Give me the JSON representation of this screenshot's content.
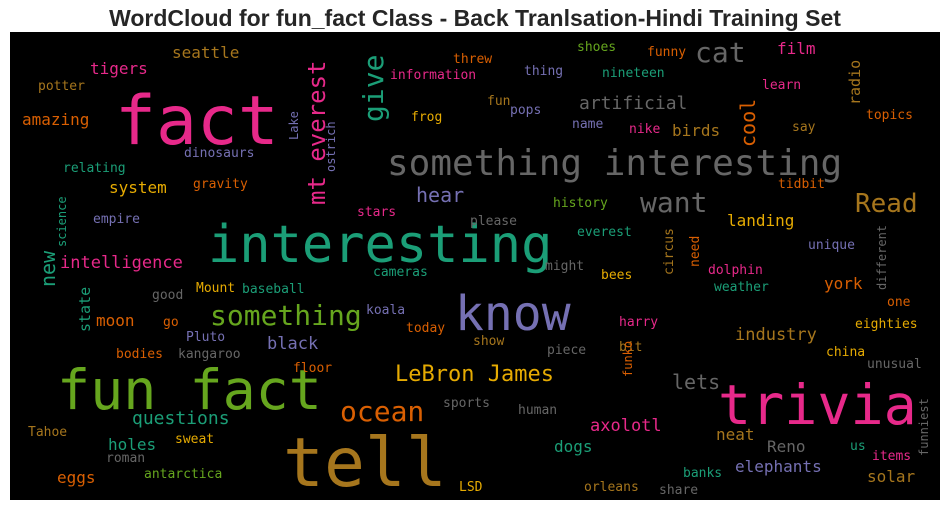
{
  "chart_data": {
    "type": "wordcloud",
    "title": "WordCloud for fun_fact Class - Back Tranlsation-Hindi Training Set",
    "background": "#000000",
    "words": [
      {
        "text": "fact",
        "size": 68,
        "color": "#e7298a"
      },
      {
        "text": "interesting",
        "size": 52,
        "color": "#1b9e77"
      },
      {
        "text": "fun fact",
        "size": 55,
        "color": "#66a61e"
      },
      {
        "text": "tell",
        "size": 68,
        "color": "#a6761d"
      },
      {
        "text": "trivia",
        "size": 55,
        "color": "#e7298a"
      },
      {
        "text": "know",
        "size": 48,
        "color": "#7570b3"
      },
      {
        "text": "something interesting",
        "size": 36,
        "color": "#666666"
      },
      {
        "text": "something",
        "size": 28,
        "color": "#66a61e"
      },
      {
        "text": "ocean",
        "size": 28,
        "color": "#d95f02"
      },
      {
        "text": "cat",
        "size": 28,
        "color": "#666666"
      },
      {
        "text": "give",
        "size": 28,
        "color": "#1b9e77"
      },
      {
        "text": "want",
        "size": 28,
        "color": "#666666"
      },
      {
        "text": "Read",
        "size": 26,
        "color": "#a6761d"
      },
      {
        "text": "mt everest",
        "size": 24,
        "color": "#e7298a"
      },
      {
        "text": "LeBron James",
        "size": 22,
        "color": "#e6ab02"
      },
      {
        "text": "cool",
        "size": 20,
        "color": "#d95f02"
      },
      {
        "text": "hear",
        "size": 20,
        "color": "#7570b3"
      },
      {
        "text": "lets",
        "size": 20,
        "color": "#666666"
      },
      {
        "text": "new",
        "size": 20,
        "color": "#1b9e77"
      },
      {
        "text": "artificial",
        "size": 18,
        "color": "#666666"
      },
      {
        "text": "questions",
        "size": 18,
        "color": "#1b9e77"
      },
      {
        "text": "intelligence",
        "size": 17,
        "color": "#e7298a"
      },
      {
        "text": "black",
        "size": 17,
        "color": "#7570b3"
      },
      {
        "text": "industry",
        "size": 17,
        "color": "#a6761d"
      },
      {
        "text": "axolotl",
        "size": 17,
        "color": "#e7298a"
      },
      {
        "text": "elephants",
        "size": 16,
        "color": "#7570b3"
      },
      {
        "text": "birds",
        "size": 16,
        "color": "#a6761d"
      },
      {
        "text": "landing",
        "size": 16,
        "color": "#e6ab02"
      },
      {
        "text": "york",
        "size": 16,
        "color": "#d95f02"
      },
      {
        "text": "neat",
        "size": 16,
        "color": "#a6761d"
      },
      {
        "text": "dogs",
        "size": 16,
        "color": "#1b9e77"
      },
      {
        "text": "Reno",
        "size": 16,
        "color": "#666666"
      },
      {
        "text": "solar",
        "size": 16,
        "color": "#a6761d"
      },
      {
        "text": "tigers",
        "size": 16,
        "color": "#e7298a"
      },
      {
        "text": "seattle",
        "size": 16,
        "color": "#a6761d"
      },
      {
        "text": "amazing",
        "size": 16,
        "color": "#d95f02"
      },
      {
        "text": "system",
        "size": 16,
        "color": "#e6ab02"
      },
      {
        "text": "moon",
        "size": 16,
        "color": "#d95f02"
      },
      {
        "text": "holes",
        "size": 16,
        "color": "#1b9e77"
      },
      {
        "text": "eggs",
        "size": 16,
        "color": "#d95f02"
      },
      {
        "text": "state",
        "size": 15,
        "color": "#1b9e77"
      },
      {
        "text": "film",
        "size": 16,
        "color": "#e7298a"
      },
      {
        "text": "radio",
        "size": 15,
        "color": "#a6761d"
      },
      {
        "text": "potter",
        "size": 13,
        "color": "#a6761d"
      },
      {
        "text": "relating",
        "size": 13,
        "color": "#1b9e77"
      },
      {
        "text": "dinosaurs",
        "size": 13,
        "color": "#7570b3"
      },
      {
        "text": "gravity",
        "size": 13,
        "color": "#d95f02"
      },
      {
        "text": "empire",
        "size": 13,
        "color": "#7570b3"
      },
      {
        "text": "science",
        "size": 12,
        "color": "#1b9e77"
      },
      {
        "text": "Lake",
        "size": 12,
        "color": "#7570b3"
      },
      {
        "text": "ostrich",
        "size": 12,
        "color": "#7570b3"
      },
      {
        "text": "threw",
        "size": 13,
        "color": "#d95f02"
      },
      {
        "text": "shoes",
        "size": 13,
        "color": "#66a61e"
      },
      {
        "text": "funny",
        "size": 13,
        "color": "#d95f02"
      },
      {
        "text": "information",
        "size": 13,
        "color": "#e7298a"
      },
      {
        "text": "thing",
        "size": 13,
        "color": "#7570b3"
      },
      {
        "text": "nineteen",
        "size": 13,
        "color": "#1b9e77"
      },
      {
        "text": "learn",
        "size": 13,
        "color": "#e7298a"
      },
      {
        "text": "fun",
        "size": 13,
        "color": "#a6761d"
      },
      {
        "text": "pops",
        "size": 13,
        "color": "#7570b3"
      },
      {
        "text": "frog",
        "size": 13,
        "color": "#e6ab02"
      },
      {
        "text": "name",
        "size": 13,
        "color": "#7570b3"
      },
      {
        "text": "nike",
        "size": 13,
        "color": "#e7298a"
      },
      {
        "text": "say",
        "size": 13,
        "color": "#a6761d"
      },
      {
        "text": "topics",
        "size": 13,
        "color": "#d95f02"
      },
      {
        "text": "stars",
        "size": 13,
        "color": "#e7298a"
      },
      {
        "text": "please",
        "size": 13,
        "color": "#666666"
      },
      {
        "text": "history",
        "size": 13,
        "color": "#66a61e"
      },
      {
        "text": "tidbit",
        "size": 13,
        "color": "#d95f02"
      },
      {
        "text": "everest",
        "size": 13,
        "color": "#1b9e77"
      },
      {
        "text": "circus",
        "size": 13,
        "color": "#a6761d"
      },
      {
        "text": "need",
        "size": 13,
        "color": "#d95f02"
      },
      {
        "text": "unique",
        "size": 13,
        "color": "#7570b3"
      },
      {
        "text": "different",
        "size": 12,
        "color": "#666666"
      },
      {
        "text": "cameras",
        "size": 13,
        "color": "#1b9e77"
      },
      {
        "text": "might",
        "size": 13,
        "color": "#666666"
      },
      {
        "text": "bees",
        "size": 13,
        "color": "#e6ab02"
      },
      {
        "text": "dolphin",
        "size": 13,
        "color": "#e7298a"
      },
      {
        "text": "weather",
        "size": 13,
        "color": "#1b9e77"
      },
      {
        "text": "good",
        "size": 13,
        "color": "#666666"
      },
      {
        "text": "Mount",
        "size": 13,
        "color": "#e6ab02"
      },
      {
        "text": "baseball",
        "size": 13,
        "color": "#1b9e77"
      },
      {
        "text": "koala",
        "size": 13,
        "color": "#7570b3"
      },
      {
        "text": "go",
        "size": 13,
        "color": "#d95f02"
      },
      {
        "text": "Pluto",
        "size": 13,
        "color": "#7570b3"
      },
      {
        "text": "today",
        "size": 13,
        "color": "#d95f02"
      },
      {
        "text": "one",
        "size": 13,
        "color": "#d95f02"
      },
      {
        "text": "harry",
        "size": 13,
        "color": "#e7298a"
      },
      {
        "text": "eighties",
        "size": 13,
        "color": "#e6ab02"
      },
      {
        "text": "show",
        "size": 13,
        "color": "#a6761d"
      },
      {
        "text": "bodies",
        "size": 13,
        "color": "#d95f02"
      },
      {
        "text": "kangaroo",
        "size": 13,
        "color": "#666666"
      },
      {
        "text": "piece",
        "size": 13,
        "color": "#666666"
      },
      {
        "text": "bit",
        "size": 13,
        "color": "#a6761d"
      },
      {
        "text": "china",
        "size": 13,
        "color": "#e6ab02"
      },
      {
        "text": "floor",
        "size": 13,
        "color": "#d95f02"
      },
      {
        "text": "funko",
        "size": 12,
        "color": "#d95f02"
      },
      {
        "text": "unusual",
        "size": 13,
        "color": "#666666"
      },
      {
        "text": "sports",
        "size": 13,
        "color": "#666666"
      },
      {
        "text": "human",
        "size": 13,
        "color": "#666666"
      },
      {
        "text": "funniest",
        "size": 12,
        "color": "#666666"
      },
      {
        "text": "Tahoe",
        "size": 13,
        "color": "#a6761d"
      },
      {
        "text": "sweat",
        "size": 13,
        "color": "#e6ab02"
      },
      {
        "text": "roman",
        "size": 13,
        "color": "#666666"
      },
      {
        "text": "us",
        "size": 13,
        "color": "#1b9e77"
      },
      {
        "text": "items",
        "size": 13,
        "color": "#e7298a"
      },
      {
        "text": "antarctica",
        "size": 13,
        "color": "#66a61e"
      },
      {
        "text": "banks",
        "size": 13,
        "color": "#1b9e77"
      },
      {
        "text": "LSD",
        "size": 13,
        "color": "#e6ab02"
      },
      {
        "text": "orleans",
        "size": 13,
        "color": "#a6761d"
      },
      {
        "text": "share",
        "size": 13,
        "color": "#666666"
      }
    ]
  }
}
